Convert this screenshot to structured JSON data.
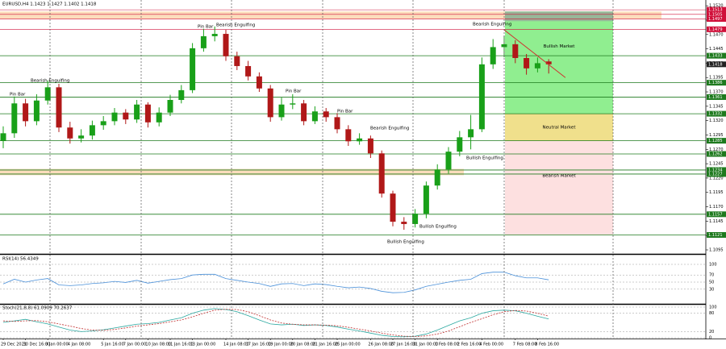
{
  "chart_data": {
    "type": "candlestick",
    "title": "EURUSD,H4  1.1423 1.1427 1.1402 1.1418",
    "categories": [
      "29 Dec 2021",
      null,
      "30 Dec 16:00",
      null,
      "3 Jan 00:00",
      null,
      "4 Jan 08:00",
      null,
      null,
      "5 Jan 16:00",
      null,
      "7 Jan 00:00",
      null,
      "10 Jan 08:00",
      null,
      "11 Jan 16:00",
      null,
      "13 Jan 00:00",
      null,
      null,
      "14 Jan 08:00",
      null,
      "17 Jan 16:00",
      null,
      "19 Jan 00:00",
      null,
      "20 Jan 08:00",
      null,
      "21 Jan 16:00",
      null,
      "25 Jan 00:00",
      null,
      null,
      "26 Jan 08:00",
      null,
      "27 Jan 16:00",
      null,
      "31 Jan 00:00",
      null,
      "1 Feb 08:00",
      null,
      "2 Feb 16:00",
      null,
      "4 Feb 00:00",
      null,
      null,
      "7 Feb 08:00",
      null,
      "8 Feb 16:00",
      null
    ],
    "open": [
      1.1285,
      1.1298,
      1.135,
      1.1319,
      1.1355,
      1.1378,
      1.1308,
      1.1289,
      1.1294,
      1.1312,
      1.1319,
      1.1334,
      1.1322,
      1.1348,
      1.1317,
      1.1334,
      1.1356,
      1.1373,
      1.1446,
      1.1467,
      1.1471,
      1.1432,
      1.1415,
      1.1397,
      1.1376,
      1.1326,
      1.1348,
      1.135,
      1.1319,
      1.1336,
      1.1326,
      1.1305,
      1.1284,
      1.1289,
      1.1263,
      1.1193,
      1.1144,
      1.114,
      1.1158,
      1.1207,
      1.1235,
      1.1266,
      1.1291,
      1.1305,
      1.1418,
      1.1448,
      1.1453,
      1.1429,
      1.1411,
      1.1423
    ],
    "high": [
      1.131,
      1.1362,
      1.1358,
      1.1366,
      1.139,
      1.1384,
      1.1318,
      1.1305,
      1.132,
      1.1328,
      1.1342,
      1.134,
      1.1356,
      1.1352,
      1.1343,
      1.1365,
      1.1382,
      1.1455,
      1.148,
      1.1484,
      1.1478,
      1.144,
      1.1424,
      1.1404,
      1.1382,
      1.136,
      1.1366,
      1.1356,
      1.1345,
      1.1342,
      1.1333,
      1.1312,
      1.1298,
      1.1294,
      1.1268,
      1.1198,
      1.1152,
      1.1166,
      1.1214,
      1.1244,
      1.1274,
      1.1302,
      1.133,
      1.143,
      1.1462,
      1.1468,
      1.146,
      1.1436,
      1.143,
      1.1427
    ],
    "low": [
      1.1272,
      1.129,
      1.131,
      1.1312,
      1.1348,
      1.13,
      1.128,
      1.1282,
      1.1287,
      1.1304,
      1.1312,
      1.1314,
      1.1316,
      1.1308,
      1.131,
      1.1328,
      1.135,
      1.1368,
      1.144,
      1.1458,
      1.1424,
      1.1408,
      1.139,
      1.137,
      1.1318,
      1.132,
      1.134,
      1.1312,
      1.1314,
      1.1318,
      1.1298,
      1.1276,
      1.1278,
      1.1255,
      1.1186,
      1.1136,
      1.113,
      1.1134,
      1.115,
      1.12,
      1.1228,
      1.1258,
      1.127,
      1.13,
      1.141,
      1.143,
      1.142,
      1.14,
      1.1404,
      1.1402
    ],
    "close": [
      1.1298,
      1.135,
      1.1319,
      1.1355,
      1.1378,
      1.1308,
      1.1289,
      1.1294,
      1.1312,
      1.1319,
      1.1334,
      1.1322,
      1.1348,
      1.1317,
      1.1334,
      1.1356,
      1.1373,
      1.1446,
      1.1467,
      1.1471,
      1.1432,
      1.1415,
      1.1397,
      1.1376,
      1.1326,
      1.1348,
      1.135,
      1.1319,
      1.1336,
      1.1326,
      1.1305,
      1.1284,
      1.1289,
      1.1263,
      1.1193,
      1.1144,
      1.114,
      1.1158,
      1.1207,
      1.1235,
      1.1266,
      1.1291,
      1.1305,
      1.1418,
      1.1448,
      1.1453,
      1.1429,
      1.1411,
      1.142,
      1.1418
    ],
    "up_color": "#19a019",
    "down_color": "#b01818",
    "ylim": [
      1.1088,
      1.153
    ],
    "yticks": [
      {
        "value": 1.152,
        "label": "1.1520"
      },
      {
        "value": 1.1495,
        "label": "1.1495"
      },
      {
        "value": 1.147,
        "label": "1.1470"
      },
      {
        "value": 1.1445,
        "label": "1.1445"
      },
      {
        "value": 1.142,
        "label": "1.1420"
      },
      {
        "value": 1.1395,
        "label": "1.1395"
      },
      {
        "value": 1.137,
        "label": "1.1370"
      },
      {
        "value": 1.1345,
        "label": "1.1345"
      },
      {
        "value": 1.132,
        "label": "1.1320"
      },
      {
        "value": 1.1295,
        "label": "1.1295"
      },
      {
        "value": 1.127,
        "label": "1.1270"
      },
      {
        "value": 1.1245,
        "label": "1.1245"
      },
      {
        "value": 1.122,
        "label": "1.1220"
      },
      {
        "value": 1.1195,
        "label": "1.1195"
      },
      {
        "value": 1.117,
        "label": "1.1170"
      },
      {
        "value": 1.1145,
        "label": "1.1145"
      },
      {
        "value": 1.112,
        "label": "1.1120"
      },
      {
        "value": 1.1095,
        "label": "1.1095"
      }
    ],
    "support_levels": [
      1.1433,
      1.1386,
      1.1361,
      1.1332,
      1.1285,
      1.1262,
      1.1234,
      1.1227,
      1.1157,
      1.1121
    ],
    "level_color": "#1e7a1e",
    "resistance_levels": [
      1.1513,
      1.1505,
      1.1497,
      1.1479
    ],
    "resistance_color": "#d0103a",
    "zones": [
      {
        "label": "Bullish Market",
        "from": 1.1332,
        "to": 1.151,
        "color": "#90ee90"
      },
      {
        "label": "Neutral Market",
        "from": 1.1285,
        "to": 1.1332,
        "color": "#f0e08c"
      },
      {
        "label": "Bearish Market",
        "from": 1.1121,
        "to": 1.1285,
        "color": "#fde0e0"
      }
    ],
    "bands": [
      {
        "from": 1.1497,
        "to": 1.151,
        "color": "#fcd9b5"
      },
      {
        "from": 1.1225,
        "to": 1.1236,
        "color": "#fcd9b5"
      }
    ],
    "trendline": {
      "x": [
        45,
        50.5
      ],
      "y": [
        1.1478,
        1.1395
      ],
      "color": "#d03030"
    },
    "annotations": [
      "Pin Bar",
      "Bearish Engulfing",
      "Pin Bar",
      "Bearish Engulfing",
      "Pin Bar",
      "Pin Bar",
      "Bearish Engulfing",
      "Bullish Engulfing",
      "Bullish Engulfing",
      "Bearish Engulfing",
      "Bullish Engulfing"
    ],
    "rsi": {
      "title": "RSI(14) 56.4349",
      "color": "#4a90d9",
      "ylim": [
        0,
        100
      ],
      "yticks": [
        100,
        70,
        50,
        30
      ],
      "values": [
        45,
        58,
        50,
        56,
        60,
        42,
        40,
        42,
        46,
        48,
        52,
        49,
        55,
        47,
        52,
        57,
        60,
        70,
        72,
        72,
        60,
        55,
        50,
        46,
        38,
        45,
        46,
        40,
        45,
        43,
        38,
        34,
        36,
        32,
        24,
        20,
        21,
        28,
        38,
        44,
        50,
        55,
        58,
        74,
        78,
        78,
        68,
        62,
        62,
        56.4
      ]
    },
    "stoch": {
      "title": "Stoch(21,8,8) 61.0909 70.2637",
      "ylim": [
        0,
        100
      ],
      "yticks": [
        100,
        80,
        20,
        0
      ],
      "main": {
        "color": "#2aa8a0",
        "values": [
          50,
          55,
          60,
          52,
          45,
          35,
          25,
          20,
          22,
          26,
          32,
          38,
          44,
          46,
          50,
          58,
          65,
          80,
          90,
          95,
          92,
          85,
          72,
          58,
          45,
          42,
          44,
          40,
          42,
          40,
          35,
          28,
          22,
          15,
          8,
          4,
          3,
          5,
          12,
          25,
          40,
          55,
          65,
          80,
          88,
          90,
          88,
          80,
          70,
          61.1
        ]
      },
      "signal": {
        "color": "#c03030",
        "values": [
          55,
          53,
          55,
          56,
          52,
          45,
          38,
          30,
          25,
          24,
          27,
          32,
          38,
          42,
          46,
          52,
          58,
          68,
          80,
          90,
          93,
          92,
          85,
          72,
          58,
          48,
          44,
          42,
          42,
          41,
          39,
          34,
          28,
          22,
          15,
          9,
          5,
          4,
          6,
          12,
          22,
          36,
          50,
          62,
          75,
          85,
          89,
          87,
          80,
          70.3
        ]
      }
    }
  }
}
